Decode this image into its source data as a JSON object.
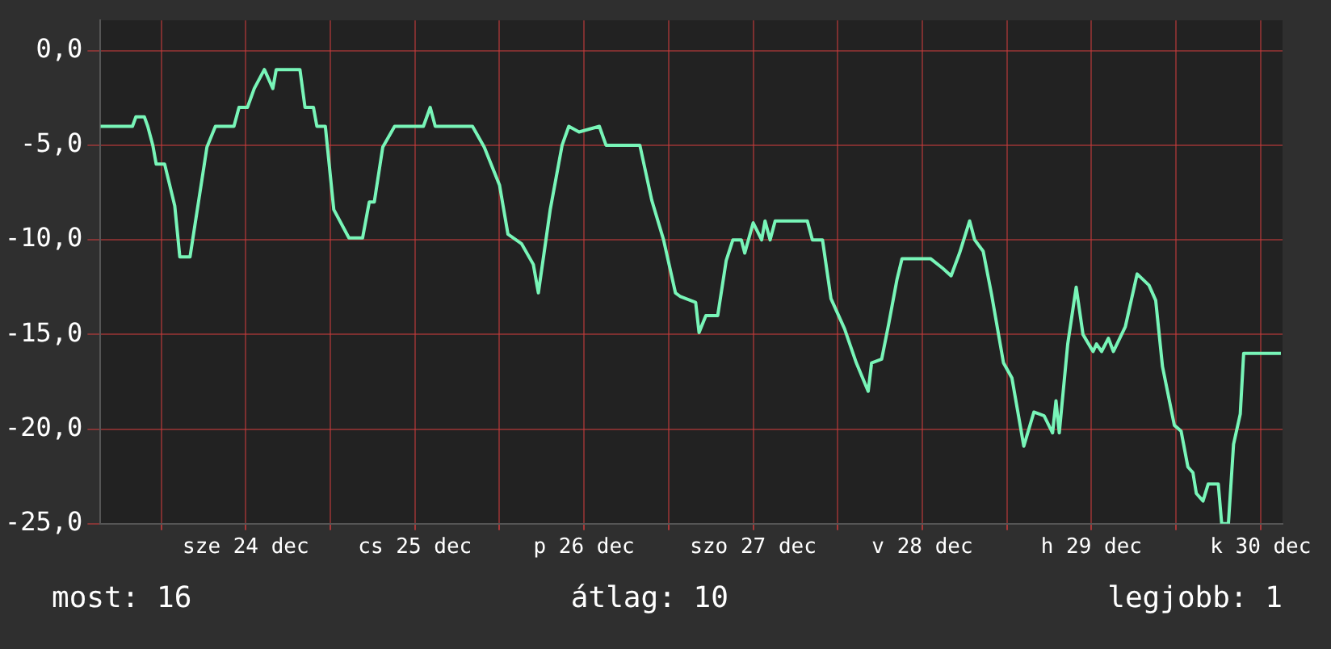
{
  "chart_data": {
    "type": "line",
    "xlim": [
      "--12-23T15:22",
      "--12-30T15:07"
    ],
    "ylim": [
      -25,
      1.6
    ],
    "xticks": [
      {
        "value": "--12-24T00:00",
        "label": null
      },
      {
        "value": "--12-24T12:00",
        "label": "sze 24 dec"
      },
      {
        "value": "--12-25T00:00",
        "label": null
      },
      {
        "value": "--12-25T12:00",
        "label": "cs 25 dec"
      },
      {
        "value": "--12-26T00:00",
        "label": null
      },
      {
        "value": "--12-26T12:00",
        "label": "p 26 dec"
      },
      {
        "value": "--12-27T00:00",
        "label": null
      },
      {
        "value": "--12-27T12:00",
        "label": "szo 27 dec"
      },
      {
        "value": "--12-28T00:00",
        "label": null
      },
      {
        "value": "--12-28T12:00",
        "label": "v 28 dec"
      },
      {
        "value": "--12-29T00:00",
        "label": null
      },
      {
        "value": "--12-29T12:00",
        "label": "h 29 dec"
      },
      {
        "value": "--12-30T00:00",
        "label": null
      },
      {
        "value": "--12-30T12:00",
        "label": "k 30 dec"
      }
    ],
    "yticks": [
      {
        "value": 0,
        "label": "0,0"
      },
      {
        "value": -5,
        "label": "-5,0"
      },
      {
        "value": -10,
        "label": "-10,0"
      },
      {
        "value": -15,
        "label": "-15,0"
      },
      {
        "value": -20,
        "label": "-20,0"
      },
      {
        "value": -25,
        "label": "-25,0"
      }
    ],
    "grid": true,
    "legend": false,
    "marker": "none",
    "line_style": "solid",
    "annotations": [
      "most: 16",
      "átlag: 10",
      "legjobb: 1"
    ],
    "series": [
      {
        "color": "#78f5b8",
        "x": [
          "--12-23T15:22",
          "--12-23T19:55",
          "--12-23T20:24",
          "--12-23T21:36",
          "--12-23T22:05",
          "--12-23T22:48",
          "--12-23T23:17",
          "--12-24T00:29",
          "--12-24T01:55",
          "--12-24T02:38",
          "--12-24T04:05",
          "--12-24T05:17",
          "--12-24T06:29",
          "--12-24T07:41",
          "--12-24T10:19",
          "--12-24T11:02",
          "--12-24T12:14",
          "--12-24T13:12",
          "--12-24T14:38",
          "--12-24T15:50",
          "--12-24T16:19",
          "--12-24T19:41",
          "--12-24T20:24",
          "--12-24T21:36",
          "--12-24T22:05",
          "--12-24T23:17",
          "--12-25T00:29",
          "--12-25T02:38",
          "--12-25T04:34",
          "--12-25T05:31",
          "--12-25T06:14",
          "--12-25T07:26",
          "--12-25T09:07",
          "--12-25T13:12",
          "--12-25T14:10",
          "--12-25T14:53",
          "--12-25T20:10",
          "--12-25T21:50",
          "--12-26T00:00",
          "--12-26T01:12",
          "--12-26T03:07",
          "--12-26T04:48",
          "--12-26T05:31",
          "--12-26T07:12",
          "--12-26T08:53",
          "--12-26T09:50",
          "--12-26T11:17",
          "--12-26T14:10",
          "--12-26T15:07",
          "--12-26T19:55",
          "--12-26T21:36",
          "--12-26T23:17",
          "--12-27T00:58",
          "--12-27T01:41",
          "--12-27T03:50",
          "--12-27T04:19",
          "--12-27T05:17",
          "--12-27T06:58",
          "--12-27T08:10",
          "--12-27T09:07",
          "--12-27T10:19",
          "--12-27T10:48",
          "--12-27T12:00",
          "--12-27T13:12",
          "--12-27T13:41",
          "--12-27T14:24",
          "--12-27T15:07",
          "--12-27T19:41",
          "--12-27T20:24",
          "--12-27T21:50",
          "--12-27T23:02",
          "--12-28T00:58",
          "--12-28T02:38",
          "--12-28T04:19",
          "--12-28T04:48",
          "--12-28T06:14",
          "--12-28T07:12",
          "--12-28T08:24",
          "--12-28T09:07",
          "--12-28T13:12",
          "--12-28T14:53",
          "--12-28T16:05",
          "--12-28T17:17",
          "--12-28T18:43",
          "--12-28T19:26",
          "--12-28T20:38",
          "--12-28T21:50",
          "--12-28T23:31",
          "--12-29T00:43",
          "--12-29T02:24",
          "--12-29T03:50",
          "--12-29T05:17",
          "--12-29T06:29",
          "--12-29T06:58",
          "--12-29T07:26",
          "--12-29T08:38",
          "--12-29T09:50",
          "--12-29T10:48",
          "--12-29T12:14",
          "--12-29T12:43",
          "--12-29T13:26",
          "--12-29T14:24",
          "--12-29T15:07",
          "--12-29T16:48",
          "--12-29T18:29",
          "--12-29T20:10",
          "--12-29T21:07",
          "--12-29T22:05",
          "--12-29T23:46",
          "--12-30T00:43",
          "--12-30T01:41",
          "--12-30T02:24",
          "--12-30T02:53",
          "--12-30T03:50",
          "--12-30T04:34",
          "--12-30T06:00",
          "--12-30T06:29",
          "--12-30T07:26",
          "--12-30T08:10",
          "--12-30T09:07",
          "--12-30T09:36",
          "--12-30T14:53"
        ],
        "values": [
          -4,
          -4,
          -3.5,
          -3.5,
          -4,
          -5,
          -6,
          -6,
          -8.2,
          -10.9,
          -10.9,
          -8,
          -5.1,
          -4,
          -4,
          -3,
          -3,
          -2,
          -1,
          -2,
          -1,
          -1,
          -3,
          -3,
          -4,
          -4,
          -8.4,
          -9.9,
          -9.9,
          -8,
          -8,
          -5.1,
          -4,
          -4,
          -3,
          -4,
          -4,
          -5.1,
          -7.1,
          -9.7,
          -10.2,
          -11.3,
          -12.8,
          -8.4,
          -5,
          -4,
          -4.3,
          -4,
          -5,
          -5,
          -7.9,
          -10,
          -12.8,
          -13,
          -13.3,
          -14.9,
          -14,
          -14,
          -11.1,
          -10,
          -10,
          -10.7,
          -9.1,
          -10,
          -9,
          -10,
          -9,
          -9,
          -10,
          -10,
          -13.1,
          -14.7,
          -16.5,
          -18,
          -16.5,
          -16.3,
          -14.5,
          -12.1,
          -11,
          -11,
          -11.5,
          -11.9,
          -10.7,
          -9,
          -10,
          -10.6,
          -12.9,
          -16.5,
          -17.3,
          -20.9,
          -19.1,
          -19.3,
          -20.2,
          -18.5,
          -20.2,
          -15.5,
          -12.5,
          -15,
          -15.9,
          -15.5,
          -15.9,
          -15.2,
          -15.9,
          -14.6,
          -11.8,
          -12.4,
          -13.2,
          -16.7,
          -19.8,
          -20.1,
          -22,
          -22.3,
          -23.4,
          -23.8,
          -22.9,
          -22.9,
          -25,
          -25,
          -20.8,
          -19.2,
          -16,
          -16
        ]
      }
    ]
  }
}
